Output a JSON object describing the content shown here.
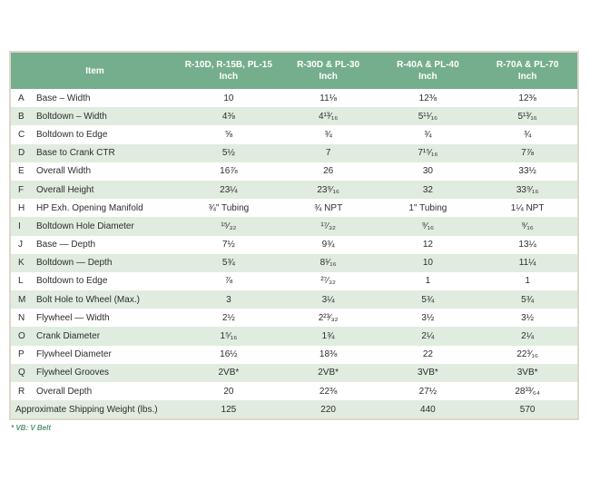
{
  "header": {
    "item_label": "Item",
    "columns": [
      {
        "models": "R-10D, R-15B, PL-15",
        "unit": "Inch"
      },
      {
        "models": "R-30D & PL-30",
        "unit": "Inch"
      },
      {
        "models": "R-40A & PL-40",
        "unit": "Inch"
      },
      {
        "models": "R-70A & PL-70",
        "unit": "Inch"
      }
    ]
  },
  "rows": [
    {
      "letter": "A",
      "item": "Base – Width",
      "values": [
        "10",
        "11⅛",
        "12⅜",
        "12⅜"
      ]
    },
    {
      "letter": "B",
      "item": "Boltdown – Width",
      "values": [
        "4⅜",
        "4¹³⁄₁₆",
        "5¹¹⁄₁₆",
        "5¹³⁄₁₆"
      ]
    },
    {
      "letter": "C",
      "item": "Boltdown to Edge",
      "values": [
        "⅝",
        "¾",
        "¾",
        "¾"
      ]
    },
    {
      "letter": "D",
      "item": "Base to Crank CTR",
      "values": [
        "5½",
        "7",
        "7¹⁵⁄₁₆",
        "7⅞"
      ]
    },
    {
      "letter": "E",
      "item": "Overall Width",
      "values": [
        "16⅞",
        "26",
        "30",
        "33½"
      ]
    },
    {
      "letter": "F",
      "item": "Overall Height",
      "values": [
        "23¼",
        "23⁹⁄₁₆",
        "32",
        "33⁹⁄₁₆"
      ]
    },
    {
      "letter": "H",
      "item": "HP Exh. Opening Manifold",
      "values": [
        "¾\" Tubing",
        "¾ NPT",
        "1\" Tubing",
        "1¼ NPT"
      ]
    },
    {
      "letter": "I",
      "item": "Boltdown Hole Diameter",
      "values": [
        "¹⁵⁄₃₂",
        "¹⁷⁄₃₂",
        "⁹⁄₁₆",
        "⁹⁄₁₆"
      ]
    },
    {
      "letter": "J",
      "item": "Base — Depth",
      "values": [
        "7½",
        "9¾",
        "12",
        "13¼"
      ]
    },
    {
      "letter": "K",
      "item": "Boltdown — Depth",
      "values": [
        "5¾",
        "8¹⁄₁₆",
        "10",
        "11¼"
      ]
    },
    {
      "letter": "L",
      "item": "Boltdown to Edge",
      "values": [
        "⅞",
        "²⁷⁄₃₂",
        "1",
        "1"
      ]
    },
    {
      "letter": "M",
      "item": "Bolt Hole to Wheel (Max.)",
      "values": [
        "3",
        "3¼",
        "5¾",
        "5¾"
      ]
    },
    {
      "letter": "N",
      "item": "Flywheel — Width",
      "values": [
        "2½",
        "2²³⁄₃₂",
        "3½",
        "3½"
      ]
    },
    {
      "letter": "O",
      "item": "Crank Diameter",
      "values": [
        "1⁵⁄₁₆",
        "1¾",
        "2¼",
        "2¼"
      ]
    },
    {
      "letter": "P",
      "item": "Flywheel Diameter",
      "values": [
        "16½",
        "18⅜",
        "22",
        "22³⁄₁₆"
      ]
    },
    {
      "letter": "Q",
      "item": "Flywheel Grooves",
      "values": [
        "2VB*",
        "2VB*",
        "3VB*",
        "3VB*"
      ]
    },
    {
      "letter": "R",
      "item": "Overall Depth",
      "values": [
        "20",
        "22⅜",
        "27½",
        "28³³⁄₆₄"
      ]
    }
  ],
  "summary_row": {
    "label": "Approximate Shipping Weight (lbs.)",
    "values": [
      "125",
      "220",
      "440",
      "570"
    ]
  },
  "footnote": "* VB: V Belt",
  "colors": {
    "header_green": "#75ae8c",
    "row_green": "#e0ecdf",
    "footnote_green": "#54976e",
    "border_beige": "#ddd8c9",
    "text_dark": "#2d2d2d"
  }
}
